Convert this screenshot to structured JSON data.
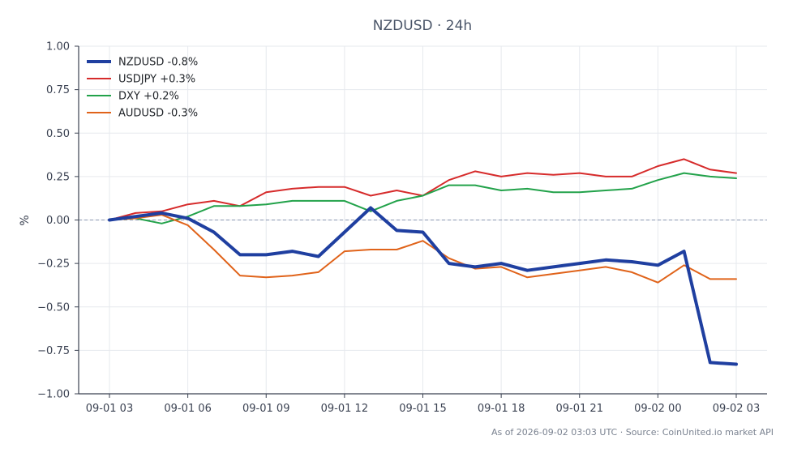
{
  "chart_data": {
    "type": "line",
    "title": "NZDUSD · 24h",
    "xlabel": "",
    "ylabel": "%",
    "ylim": [
      -1.0,
      1.0
    ],
    "yticks": [
      1.0,
      0.75,
      0.5,
      0.25,
      0.0,
      -0.25,
      -0.5,
      -0.75,
      -1.0
    ],
    "ytick_labels": [
      "1.00",
      "0.75",
      "0.50",
      "0.25",
      "0.00",
      "−0.25",
      "−0.50",
      "−0.75",
      "−1.00"
    ],
    "xtick_labels": [
      "09-01 03",
      "09-01 06",
      "09-01 09",
      "09-01 12",
      "09-01 15",
      "09-01 18",
      "09-01 21",
      "09-02 00",
      "09-02 03"
    ],
    "x": [
      "09-01 03",
      "09-01 04",
      "09-01 05",
      "09-01 06",
      "09-01 07",
      "09-01 08",
      "09-01 09",
      "09-01 10",
      "09-01 11",
      "09-01 12",
      "09-01 13",
      "09-01 14",
      "09-01 15",
      "09-01 16",
      "09-01 17",
      "09-01 18",
      "09-01 19",
      "09-01 20",
      "09-01 21",
      "09-01 22",
      "09-01 23",
      "09-02 00",
      "09-02 01",
      "09-02 02",
      "09-02 03"
    ],
    "grid": true,
    "reference_line": 0,
    "legend_position": "top-left",
    "series": [
      {
        "name": "NZDUSD -0.8%",
        "color": "#1f3fa0",
        "width": 4,
        "values": [
          0.0,
          0.02,
          0.04,
          0.01,
          -0.07,
          -0.2,
          -0.2,
          -0.18,
          -0.21,
          -0.07,
          0.07,
          -0.06,
          -0.07,
          -0.25,
          -0.27,
          -0.25,
          -0.29,
          -0.27,
          -0.25,
          -0.23,
          -0.24,
          -0.26,
          -0.18,
          -0.82,
          -0.83
        ]
      },
      {
        "name": "USDJPY +0.3%",
        "color": "#d62b2b",
        "width": 2,
        "values": [
          0.0,
          0.04,
          0.05,
          0.09,
          0.11,
          0.08,
          0.16,
          0.18,
          0.19,
          0.19,
          0.14,
          0.17,
          0.14,
          0.23,
          0.28,
          0.25,
          0.27,
          0.26,
          0.27,
          0.25,
          0.25,
          0.31,
          0.35,
          0.29,
          0.27
        ]
      },
      {
        "name": "DXY +0.2%",
        "color": "#22a24a",
        "width": 2,
        "values": [
          0.0,
          0.01,
          -0.02,
          0.02,
          0.08,
          0.08,
          0.09,
          0.11,
          0.11,
          0.11,
          0.05,
          0.11,
          0.14,
          0.2,
          0.2,
          0.17,
          0.18,
          0.16,
          0.16,
          0.17,
          0.18,
          0.23,
          0.27,
          0.25,
          0.24
        ]
      },
      {
        "name": "AUDUSD -0.3%",
        "color": "#e0631a",
        "width": 2,
        "values": [
          0.0,
          0.01,
          0.03,
          -0.03,
          -0.17,
          -0.32,
          -0.33,
          -0.32,
          -0.3,
          -0.18,
          -0.17,
          -0.17,
          -0.12,
          -0.22,
          -0.28,
          -0.27,
          -0.33,
          -0.31,
          -0.29,
          -0.27,
          -0.3,
          -0.36,
          -0.26,
          -0.34,
          -0.34
        ]
      }
    ]
  },
  "footer": "As of 2026-09-02 03:03 UTC · Source: CoinUnited.io market API",
  "colors": {
    "axis": "#3b4252",
    "grid": "#e6e9ee",
    "reference": "#8a96b0"
  }
}
